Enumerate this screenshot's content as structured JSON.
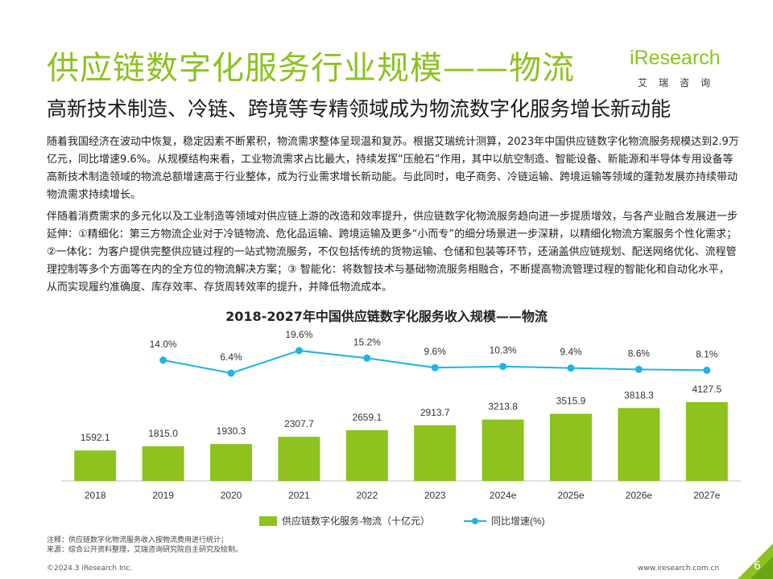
{
  "header": {
    "title": "供应链数字化服务行业规模——物流",
    "subtitle": "高新技术制造、冷链、跨境等专精领域成为物流数字化服务增长新动能"
  },
  "logo": {
    "word": "iResearch",
    "cn": "艾瑞咨询"
  },
  "body": {
    "paragraph1": "随着我国经济在波动中恢复，稳定因素不断累积，物流需求整体呈现温和复苏。根据艾瑞统计测算，2023年中国供应链数字化物流服务规模达到2.9万亿元，同比增速9.6%。从规模结构来看，工业物流需求占比最大，持续发挥“压舱石”作用，其中以航空制造、智能设备、新能源和半导体专用设备等高新技术制造领域的物流总额增速高于行业整体，成为行业需求增长新动能。与此同时，电子商务、冷链运输、跨境运输等领域的蓬勃发展亦持续带动物流需求持续增长。",
    "paragraph2": "伴随着消费需求的多元化以及工业制造等领域对供应链上游的改造和效率提升，供应链数字化物流服务趋向进一步提质增效，与各产业融合发展进一步延伸：①精细化：第三方物流企业对于冷链物流、危化品运输、跨境运输及更多“小而专”的细分场景进一步深耕，以精细化物流方案服务个性化需求；②一体化：为客户提供完整供应链过程的一站式物流服务，不仅包括传统的货物运输、仓储和包装等环节，还涵盖供应链规划、配送网络优化、流程管理控制等多个方面等在内的全方位的物流解决方案；③ 智能化：将数智技术与基础物流服务相融合，不断提高物流管理过程的智能化和自动化水平，从而实现履约准确度、库存效率、存货周转效率的提升，并降低物流成本。"
  },
  "chart_data": {
    "type": "bar",
    "title": "2018-2027年中国供应链数字化服务收入规模——物流",
    "categories": [
      "2018",
      "2019",
      "2020",
      "2021",
      "2022",
      "2023",
      "2024e",
      "2025e",
      "2026e",
      "2027e"
    ],
    "series": [
      {
        "name": "供应链数字化服务-物流（十亿元）",
        "type": "bar",
        "values": [
          1592.1,
          1815.0,
          1930.3,
          2307.7,
          2659.1,
          2913.7,
          3213.8,
          3515.9,
          3818.3,
          4127.5
        ],
        "labels": [
          "1592.1",
          "1815.0",
          "1930.3",
          "2307.7",
          "2659.1",
          "2913.7",
          "3213.8",
          "3515.9",
          "3818.3",
          "4127.5"
        ],
        "color": "#8dc21f"
      },
      {
        "name": "同比增速(%)",
        "type": "line",
        "values": [
          null,
          14.0,
          6.4,
          19.6,
          15.2,
          9.6,
          10.3,
          9.4,
          8.6,
          8.1
        ],
        "labels": [
          "",
          "14.0%",
          "6.4%",
          "19.6%",
          "15.2%",
          "9.6%",
          "10.3%",
          "9.4%",
          "8.6%",
          "8.1%"
        ],
        "color": "#1fb3e6"
      }
    ],
    "xlabel": "",
    "ylabel": "",
    "legend": "bottom"
  },
  "footer": {
    "note1": "注释：供应链数字化物流服务收入按物流费用进行统计；",
    "note2": "来源：综合公开资料整理，艾瑞咨询研究院自主研究及绘制。",
    "copyright": "©2024.3 iResearch Inc.",
    "website": "www.iresearch.com.cn",
    "page": "6"
  },
  "colors": {
    "accent": "#8dc21f",
    "line": "#1fb3e6",
    "corner": "#8dc21f"
  }
}
